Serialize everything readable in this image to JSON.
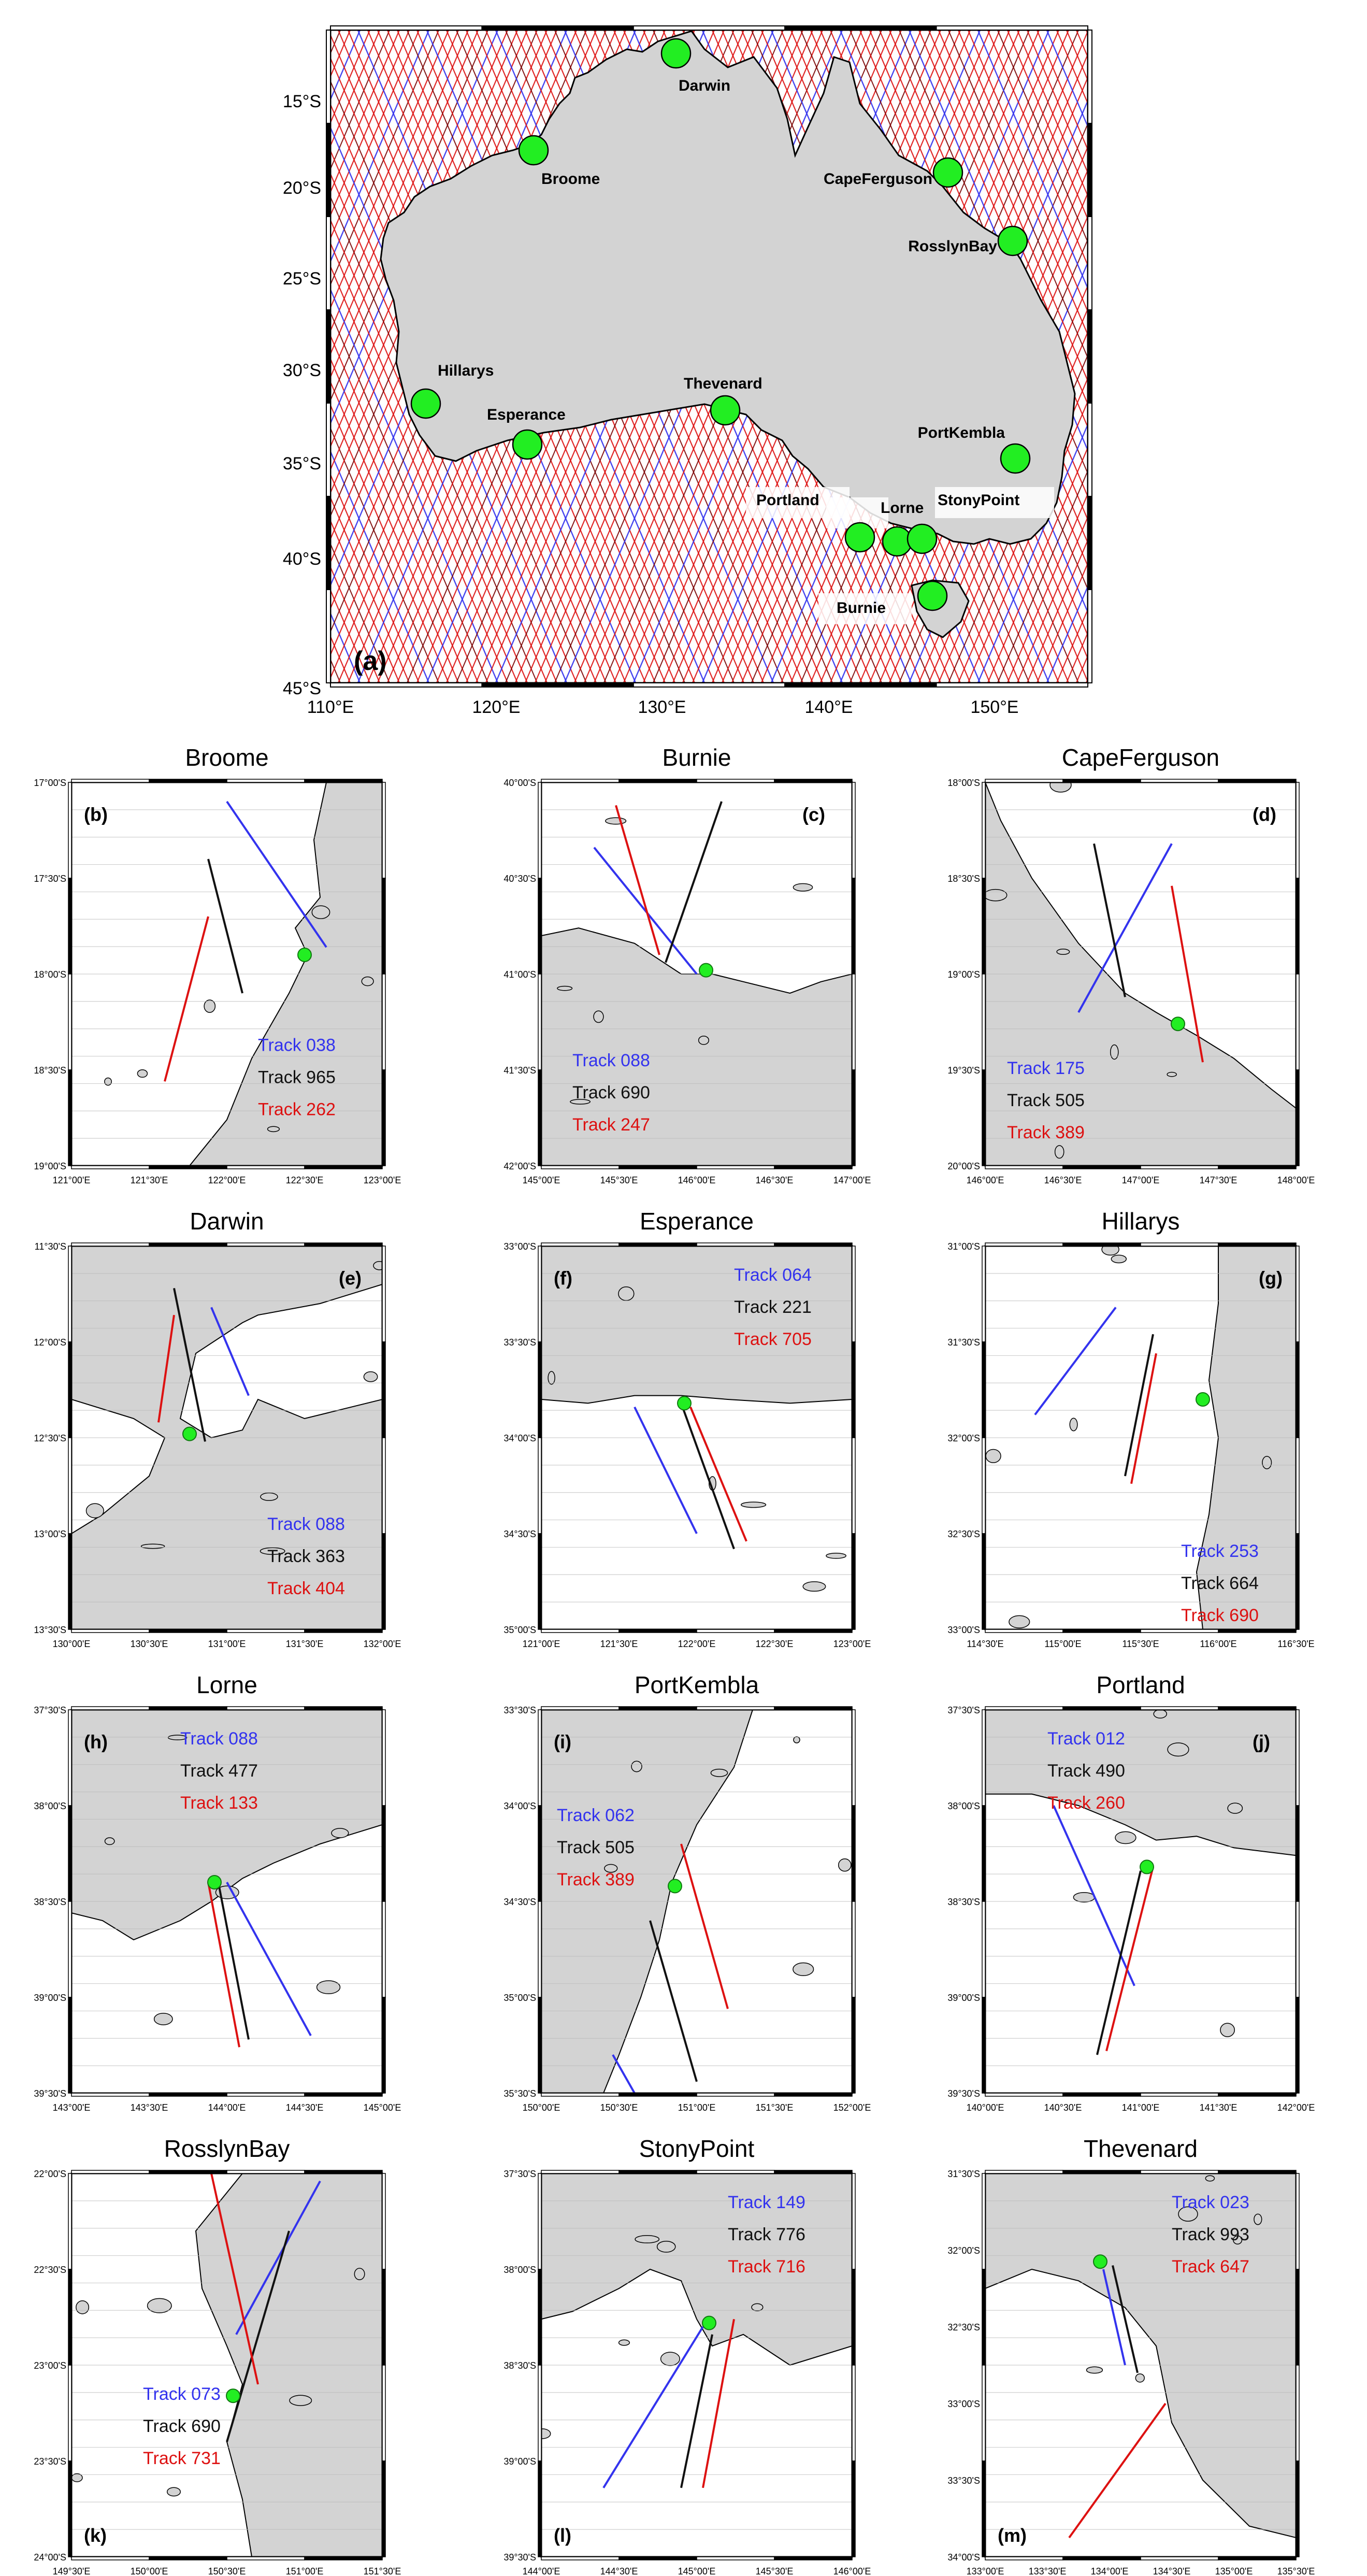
{
  "main_map": {
    "panel_label": "(a)",
    "lat_ticks": [
      "15°S",
      "20°S",
      "25°S",
      "30°S",
      "35°S",
      "40°S",
      "45°S"
    ],
    "lon_ticks": [
      "110°E",
      "120°E",
      "130°E",
      "140°E",
      "150°E"
    ],
    "stations": [
      {
        "name": "Darwin"
      },
      {
        "name": "Broome"
      },
      {
        "name": "CapeFerguson"
      },
      {
        "name": "RosslynBay"
      },
      {
        "name": "Hillarys"
      },
      {
        "name": "Esperance"
      },
      {
        "name": "Thevenard"
      },
      {
        "name": "PortKembla"
      },
      {
        "name": "Portland"
      },
      {
        "name": "Lorne"
      },
      {
        "name": "StonyPoint"
      },
      {
        "name": "Burnie"
      }
    ]
  },
  "colors": {
    "track_a": "#3333ee",
    "track_b": "#111111",
    "track_c": "#dd1111",
    "land": "#d3d3d3",
    "station": "#22ee22"
  },
  "panels": [
    {
      "title": "Broome",
      "label": "(b)",
      "tracks": [
        "Track 038",
        "Track 965",
        "Track 262"
      ],
      "lat_ticks": [
        "17°00'S",
        "17°30'S",
        "18°00'S",
        "18°30'S",
        "19°00'S"
      ],
      "lon_ticks": [
        "121°00'E",
        "121°30'E",
        "122°00'E",
        "122°30'E",
        "123°00'E"
      ]
    },
    {
      "title": "Burnie",
      "label": "(c)",
      "tracks": [
        "Track 088",
        "Track 690",
        "Track 247"
      ],
      "lat_ticks": [
        "40°00'S",
        "40°30'S",
        "41°00'S",
        "41°30'S",
        "42°00'S"
      ],
      "lon_ticks": [
        "145°00'E",
        "145°30'E",
        "146°00'E",
        "146°30'E",
        "147°00'E"
      ]
    },
    {
      "title": "CapeFerguson",
      "label": "(d)",
      "tracks": [
        "Track 175",
        "Track 505",
        "Track 389"
      ],
      "lat_ticks": [
        "18°00'S",
        "18°30'S",
        "19°00'S",
        "19°30'S",
        "20°00'S"
      ],
      "lon_ticks": [
        "146°00'E",
        "146°30'E",
        "147°00'E",
        "147°30'E",
        "148°00'E"
      ]
    },
    {
      "title": "Darwin",
      "label": "(e)",
      "tracks": [
        "Track 088",
        "Track 363",
        "Track 404"
      ],
      "lat_ticks": [
        "11°30'S",
        "12°00'S",
        "12°30'S",
        "13°00'S",
        "13°30'S"
      ],
      "lon_ticks": [
        "130°00'E",
        "130°30'E",
        "131°00'E",
        "131°30'E",
        "132°00'E"
      ]
    },
    {
      "title": "Esperance",
      "label": "(f)",
      "tracks": [
        "Track 064",
        "Track 221",
        "Track 705"
      ],
      "lat_ticks": [
        "33°00'S",
        "33°30'S",
        "34°00'S",
        "34°30'S",
        "35°00'S"
      ],
      "lon_ticks": [
        "121°00'E",
        "121°30'E",
        "122°00'E",
        "122°30'E",
        "123°00'E"
      ]
    },
    {
      "title": "Hillarys",
      "label": "(g)",
      "tracks": [
        "Track 253",
        "Track 664",
        "Track 690"
      ],
      "lat_ticks": [
        "31°00'S",
        "31°30'S",
        "32°00'S",
        "32°30'S",
        "33°00'S"
      ],
      "lon_ticks": [
        "114°30'E",
        "115°00'E",
        "115°30'E",
        "116°00'E",
        "116°30'E"
      ]
    },
    {
      "title": "Lorne",
      "label": "(h)",
      "tracks": [
        "Track 088",
        "Track 477",
        "Track 133"
      ],
      "lat_ticks": [
        "37°30'S",
        "38°00'S",
        "38°30'S",
        "39°00'S",
        "39°30'S"
      ],
      "lon_ticks": [
        "143°00'E",
        "143°30'E",
        "144°00'E",
        "144°30'E",
        "145°00'E"
      ]
    },
    {
      "title": "PortKembla",
      "label": "(i)",
      "tracks": [
        "Track 062",
        "Track 505",
        "Track 389"
      ],
      "lat_ticks": [
        "33°30'S",
        "34°00'S",
        "34°30'S",
        "35°00'S",
        "35°30'S"
      ],
      "lon_ticks": [
        "150°00'E",
        "150°30'E",
        "151°00'E",
        "151°30'E",
        "152°00'E"
      ]
    },
    {
      "title": "Portland",
      "label": "(j)",
      "tracks": [
        "Track 012",
        "Track 490",
        "Track 260"
      ],
      "lat_ticks": [
        "37°30'S",
        "38°00'S",
        "38°30'S",
        "39°00'S",
        "39°30'S"
      ],
      "lon_ticks": [
        "140°00'E",
        "140°30'E",
        "141°00'E",
        "141°30'E",
        "142°00'E"
      ]
    },
    {
      "title": "RosslynBay",
      "label": "(k)",
      "tracks": [
        "Track 073",
        "Track 690",
        "Track 731"
      ],
      "lat_ticks": [
        "22°00'S",
        "22°30'S",
        "23°00'S",
        "23°30'S",
        "24°00'S"
      ],
      "lon_ticks": [
        "149°30'E",
        "150°00'E",
        "150°30'E",
        "151°00'E",
        "151°30'E"
      ]
    },
    {
      "title": "StonyPoint",
      "label": "(l)",
      "tracks": [
        "Track 149",
        "Track 776",
        "Track 716"
      ],
      "lat_ticks": [
        "37°30'S",
        "38°00'S",
        "38°30'S",
        "39°00'S",
        "39°30'S"
      ],
      "lon_ticks": [
        "144°00'E",
        "144°30'E",
        "145°00'E",
        "145°30'E",
        "146°00'E"
      ]
    },
    {
      "title": "Thevenard",
      "label": "(m)",
      "tracks": [
        "Track 023",
        "Track 993",
        "Track 647"
      ],
      "lat_ticks": [
        "31°30'S",
        "32°00'S",
        "32°30'S",
        "33°00'S",
        "33°30'S",
        "34°00'S"
      ],
      "lon_ticks": [
        "133°00'E",
        "133°30'E",
        "134°00'E",
        "134°30'E",
        "135°00'E",
        "135°30'E"
      ]
    }
  ]
}
